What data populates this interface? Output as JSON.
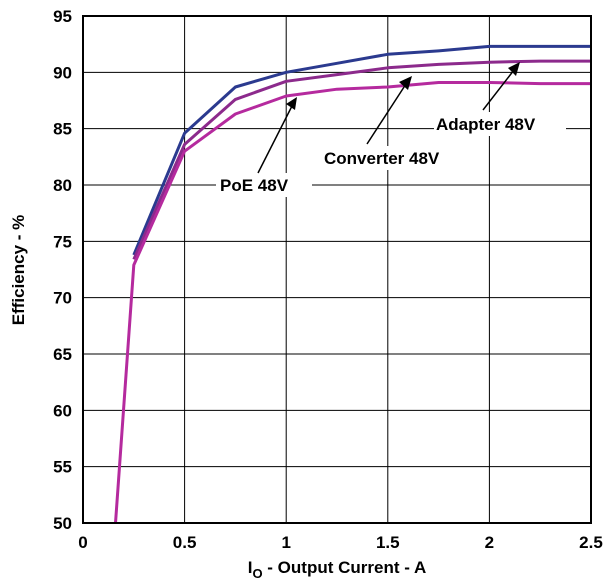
{
  "chart_data": {
    "type": "line",
    "xlabel_main": "I",
    "xlabel_sub": "O",
    "xlabel_rest": " - Output Current - A",
    "ylabel": "Efficiency - %",
    "xlim": [
      0,
      2.5
    ],
    "ylim": [
      50,
      95
    ],
    "x_ticks": [
      "0",
      "0.5",
      "1",
      "1.5",
      "2",
      "2.5"
    ],
    "y_ticks": [
      "50",
      "55",
      "60",
      "65",
      "70",
      "75",
      "80",
      "85",
      "90",
      "95"
    ],
    "grid": true,
    "series": [
      {
        "name": "Adapter 48V",
        "color": "#2b3a8f",
        "x": [
          0.25,
          0.5,
          0.75,
          1.0,
          1.25,
          1.5,
          1.75,
          2.0,
          2.25,
          2.5
        ],
        "y": [
          73.8,
          84.6,
          88.7,
          90.0,
          90.8,
          91.6,
          91.9,
          92.3,
          92.3,
          92.3
        ]
      },
      {
        "name": "Converter 48V",
        "color": "#8c2a8c",
        "x": [
          0.25,
          0.5,
          0.75,
          1.0,
          1.25,
          1.5,
          1.75,
          2.0,
          2.25,
          2.5
        ],
        "y": [
          73.4,
          83.6,
          87.6,
          89.2,
          89.8,
          90.4,
          90.7,
          90.9,
          91.0,
          91.0
        ]
      },
      {
        "name": "PoE 48V",
        "color": "#b52a9e",
        "x": [
          0.16,
          0.25,
          0.5,
          0.75,
          1.0,
          1.25,
          1.5,
          1.75,
          2.0,
          2.25,
          2.5
        ],
        "y": [
          50.0,
          72.9,
          83.0,
          86.3,
          87.9,
          88.5,
          88.7,
          89.1,
          89.1,
          89.0,
          89.0
        ]
      }
    ],
    "annotations": [
      {
        "text": "Adapter 48V",
        "series": "Adapter 48V"
      },
      {
        "text": "Converter 48V",
        "series": "Converter 48V"
      },
      {
        "text": "PoE 48V",
        "series": "PoE 48V"
      }
    ]
  }
}
